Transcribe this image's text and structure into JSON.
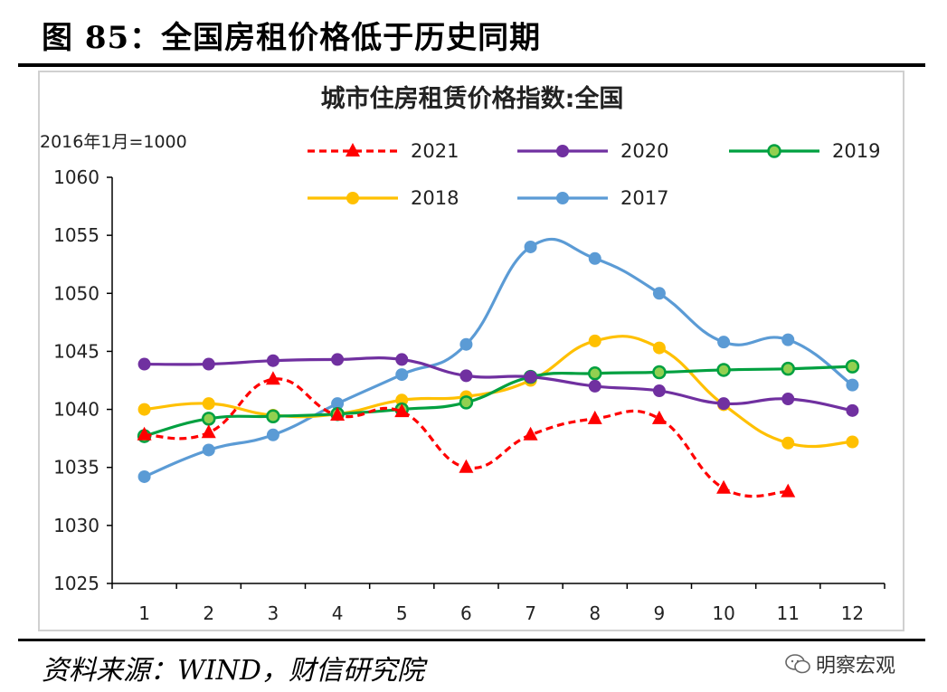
{
  "figure": {
    "title": "图 85：全国房租价格低于历史同期",
    "source": "资料来源：WIND，财信研究院",
    "watermark": "明察宏观"
  },
  "chart_data": {
    "type": "line",
    "title": "城市住房租赁价格指数:全国",
    "unit_note": "2016年1月=1000",
    "categories": [
      "1",
      "2",
      "3",
      "4",
      "5",
      "6",
      "7",
      "8",
      "9",
      "10",
      "11",
      "12"
    ],
    "ylim": [
      1025,
      1060
    ],
    "yticks": [
      1025,
      1030,
      1035,
      1040,
      1045,
      1050,
      1055,
      1060
    ],
    "grid": false,
    "legend_position": "top",
    "series": [
      {
        "name": "2021",
        "color": "#ff0000",
        "dash": true,
        "marker": "triangle",
        "values": [
          1037.8,
          1038.0,
          1042.6,
          1039.5,
          1039.8,
          1035.0,
          1037.8,
          1039.2,
          1039.2,
          1033.2,
          1032.9,
          null
        ]
      },
      {
        "name": "2020",
        "color": "#7030a0",
        "dash": false,
        "marker": "circle",
        "values": [
          1043.9,
          1043.9,
          1044.2,
          1044.3,
          1044.3,
          1042.9,
          1042.8,
          1042.0,
          1041.6,
          1040.5,
          1040.9,
          1039.9
        ]
      },
      {
        "name": "2019",
        "color": "#00a040",
        "dash": false,
        "marker": "circle-ring",
        "values": [
          1037.7,
          1039.2,
          1039.4,
          1039.6,
          1040.0,
          1040.6,
          1042.8,
          1043.1,
          1043.2,
          1043.4,
          1043.5,
          1043.7
        ]
      },
      {
        "name": "2018",
        "color": "#ffc000",
        "dash": false,
        "marker": "circle",
        "values": [
          1040.0,
          1040.5,
          1039.5,
          1039.6,
          1040.8,
          1041.1,
          1042.5,
          1045.9,
          1045.3,
          1040.4,
          1037.1,
          1037.2
        ]
      },
      {
        "name": "2017",
        "color": "#5b9bd5",
        "dash": false,
        "marker": "circle",
        "values": [
          1034.2,
          1036.5,
          1037.8,
          1040.5,
          1043.0,
          1045.6,
          1054.0,
          1053.0,
          1050.0,
          1045.8,
          1046.0,
          1042.1
        ]
      }
    ]
  }
}
